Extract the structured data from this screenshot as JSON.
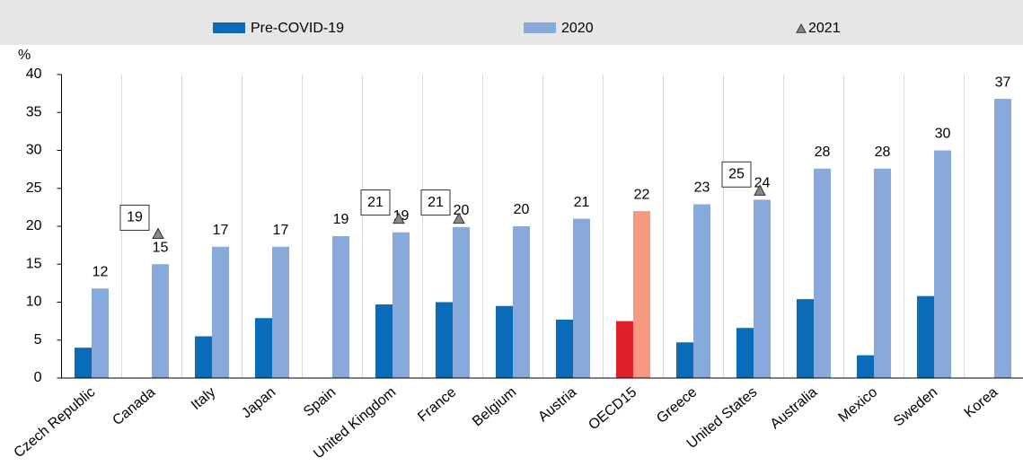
{
  "chart_data": {
    "type": "bar",
    "y_unit": "%",
    "categories": [
      "Czech Republic",
      "Canada",
      "Italy",
      "Japan",
      "Spain",
      "United Kingdom",
      "France",
      "Belgium",
      "Austria",
      "OECD15",
      "Greece",
      "United States",
      "Australia",
      "Mexico",
      "Sweden",
      "Korea"
    ],
    "highlight": "OECD15",
    "series": [
      {
        "name": "Pre-COVID-19",
        "kind": "bar",
        "color": "#0a6cb8",
        "highlight_color": "#e0202a",
        "values": [
          4,
          null,
          5.5,
          7.9,
          null,
          9.7,
          10,
          9.5,
          7.7,
          7.5,
          4.7,
          6.6,
          10.4,
          3,
          10.8,
          null
        ]
      },
      {
        "name": "2020",
        "kind": "bar",
        "color": "#87aadb",
        "highlight_color": "#f59a80",
        "values": [
          11.8,
          15,
          17.3,
          17.3,
          18.7,
          19.2,
          19.9,
          20,
          21,
          22,
          22.9,
          23.5,
          27.6,
          27.6,
          30,
          36.8
        ],
        "value_labels": [
          "12",
          "15",
          "17",
          "17",
          "19",
          "19",
          "20",
          "20",
          "21",
          "22",
          "23",
          "24",
          "28",
          "28",
          "30",
          "37"
        ]
      },
      {
        "name": "2021",
        "kind": "marker",
        "color": "#888888",
        "values": [
          null,
          19,
          null,
          null,
          null,
          21,
          21,
          null,
          null,
          null,
          null,
          24.7,
          null,
          null,
          null,
          null
        ],
        "value_labels": [
          null,
          "19",
          null,
          null,
          null,
          "21",
          "21",
          null,
          null,
          null,
          null,
          "25",
          null,
          null,
          null,
          null
        ]
      }
    ],
    "ylim": [
      0,
      40
    ],
    "yticks": [
      0,
      5,
      10,
      15,
      20,
      25,
      30,
      35,
      40
    ],
    "grid": "vertical"
  }
}
